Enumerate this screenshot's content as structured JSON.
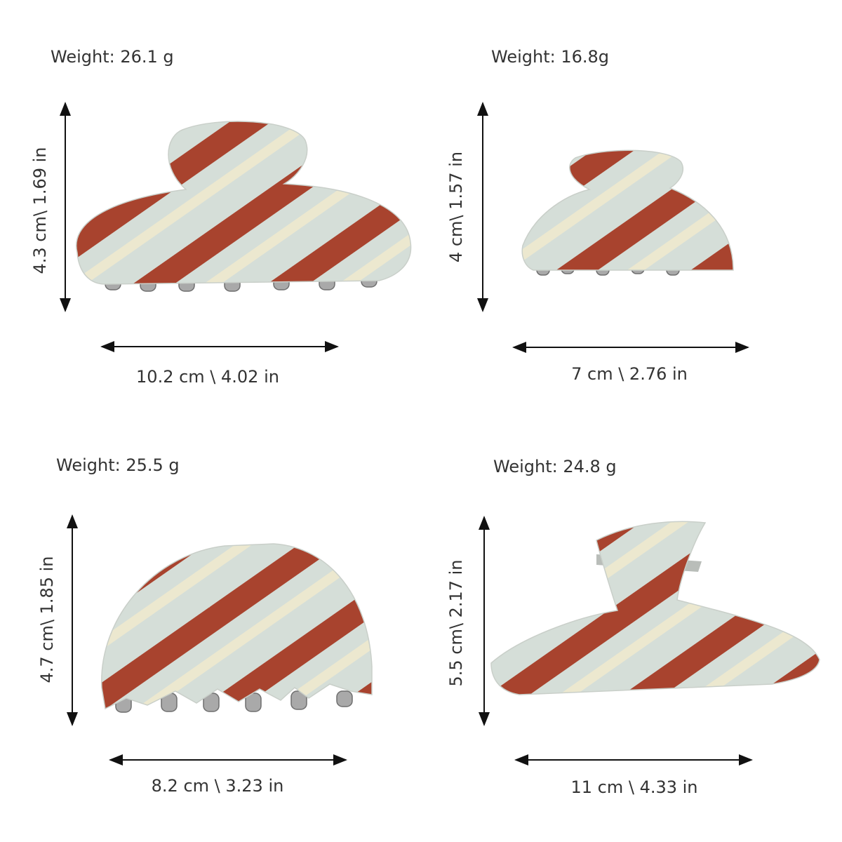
{
  "items": [
    {
      "weight": "Weight: 26.1 g",
      "height": "4.3 cm\\ 1.69 in",
      "width": "10.2 cm \\ 4.02 in"
    },
    {
      "weight": "Weight: 16.8g",
      "height": "4 cm\\ 1.57  in",
      "width": "7 cm \\ 2.76 in"
    },
    {
      "weight": "Weight: 25.5 g",
      "height": "4.7 cm\\ 1.85  in",
      "width": "8.2 cm \\ 3.23 in"
    },
    {
      "weight": "Weight: 24.8 g",
      "height": "5.5 cm\\ 2.17  in",
      "width": "11 cm \\ 4.33 in"
    }
  ]
}
